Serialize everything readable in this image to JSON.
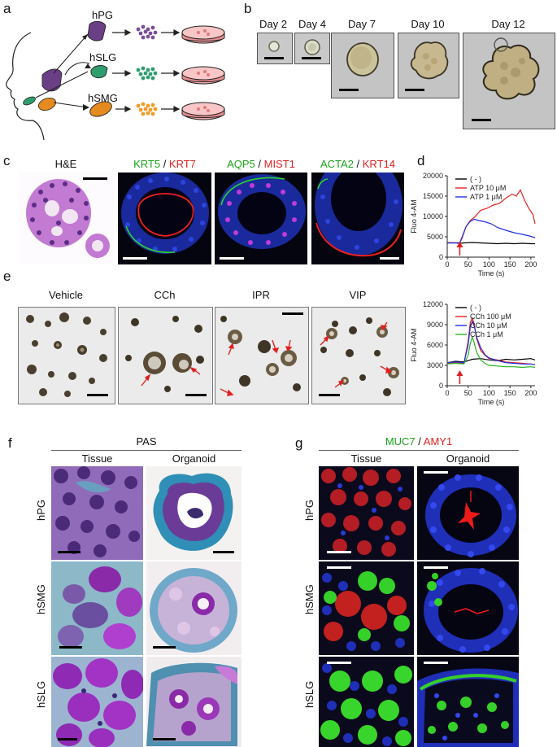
{
  "panels": {
    "a": {
      "letter": "a",
      "glands": [
        "hPG",
        "hSLG",
        "hSMG"
      ],
      "colors": {
        "hPG": "#6a3f86",
        "hSLG": "#2f9e6e",
        "hSMG": "#e58a1f"
      }
    },
    "b": {
      "letter": "b",
      "days": [
        "Day 2",
        "Day 4",
        "Day 7",
        "Day 10",
        "Day 12"
      ]
    },
    "c": {
      "letter": "c",
      "he": "H&E",
      "stains": [
        {
          "green": "KRT5",
          "sep": " / ",
          "red": "KRT7"
        },
        {
          "green": "AQP5",
          "sep": " / ",
          "red": "MIST1"
        },
        {
          "green": "ACTA2",
          "sep": " / ",
          "red": "KRT14"
        }
      ]
    },
    "d": {
      "letter": "d"
    },
    "e": {
      "letter": "e",
      "conditions": [
        "Vehicle",
        "CCh",
        "IPR",
        "VIP"
      ]
    },
    "f": {
      "letter": "f",
      "title": "PAS",
      "cols": [
        "Tissue",
        "Organoid"
      ],
      "rows": [
        "hPG",
        "hSMG",
        "hSLG"
      ]
    },
    "g": {
      "letter": "g",
      "title_green": "MUC7",
      "title_sep": " / ",
      "title_red": "AMY1",
      "cols": [
        "Tissue",
        "Organoid"
      ],
      "rows": [
        "hPG",
        "hSMG",
        "hSLG"
      ]
    }
  },
  "chart_data": [
    {
      "type": "line",
      "panel": "d",
      "xlabel": "Time (s)",
      "ylabel": "Fluo 4-AM",
      "xlim": [
        0,
        210
      ],
      "ylim": [
        0,
        20000
      ],
      "xticks": [
        0,
        50,
        100,
        150,
        200
      ],
      "yticks": [
        0,
        5000,
        10000,
        15000,
        20000
      ],
      "arrow_x": 30,
      "series": [
        {
          "name": "( - )",
          "color": "#000000",
          "x": [
            0,
            20,
            30,
            40,
            60,
            80,
            100,
            120,
            140,
            160,
            180,
            200,
            210
          ],
          "values": [
            3500,
            3500,
            3400,
            3500,
            3600,
            3500,
            3400,
            3300,
            3400,
            3300,
            3400,
            3300,
            3300
          ]
        },
        {
          "name": "ATP 10 μM",
          "color": "#e8211d",
          "x": [
            0,
            20,
            30,
            35,
            45,
            55,
            65,
            80,
            95,
            110,
            125,
            140,
            155,
            165,
            175,
            185,
            195,
            205,
            210
          ],
          "values": [
            3600,
            3500,
            3600,
            4500,
            7500,
            9000,
            9800,
            11500,
            12000,
            12800,
            13200,
            14500,
            15500,
            15000,
            16500,
            14000,
            12000,
            10500,
            8200
          ]
        },
        {
          "name": "ATP 1 μM",
          "color": "#1f2fe0",
          "x": [
            0,
            20,
            30,
            35,
            45,
            55,
            65,
            75,
            90,
            105,
            120,
            140,
            160,
            180,
            200,
            210
          ],
          "values": [
            3500,
            3500,
            3500,
            4800,
            7500,
            8800,
            9300,
            9000,
            8700,
            8200,
            7300,
            6600,
            6000,
            5600,
            5100,
            4800
          ]
        }
      ]
    },
    {
      "type": "line",
      "panel": "e",
      "xlabel": "Time (s)",
      "ylabel": "Fluo 4-AM",
      "xlim": [
        0,
        210
      ],
      "ylim": [
        0,
        12000
      ],
      "xticks": [
        0,
        50,
        100,
        150,
        200
      ],
      "yticks": [
        0,
        3000,
        6000,
        9000,
        12000
      ],
      "arrow_x": 30,
      "series": [
        {
          "name": "( - )",
          "color": "#000000",
          "x": [
            0,
            20,
            40,
            60,
            80,
            100,
            120,
            140,
            160,
            180,
            200,
            210
          ],
          "values": [
            3400,
            3600,
            3500,
            3900,
            4000,
            3800,
            3700,
            3900,
            3800,
            3900,
            4000,
            3800
          ]
        },
        {
          "name": "CCh 100 μM",
          "color": "#e8211d",
          "x": [
            0,
            20,
            40,
            50,
            55,
            60,
            65,
            70,
            80,
            90,
            100,
            120,
            140,
            160,
            180,
            200,
            210
          ],
          "values": [
            3300,
            3400,
            3300,
            6500,
            9300,
            10000,
            9000,
            7000,
            5200,
            4500,
            4000,
            3800,
            3500,
            3400,
            3300,
            3200,
            3100
          ]
        },
        {
          "name": "CCh 10 μM",
          "color": "#1f2fe0",
          "x": [
            0,
            20,
            40,
            50,
            55,
            60,
            65,
            70,
            80,
            90,
            100,
            120,
            140,
            160,
            180,
            200,
            210
          ],
          "values": [
            3400,
            3500,
            3400,
            6000,
            8600,
            9500,
            8700,
            7200,
            5600,
            4600,
            4100,
            3700,
            3400,
            3300,
            3200,
            3200,
            3100
          ]
        },
        {
          "name": "CCh 1 μM",
          "color": "#29b327",
          "x": [
            0,
            20,
            40,
            50,
            55,
            60,
            65,
            70,
            80,
            90,
            100,
            120,
            140,
            160,
            180,
            200,
            210
          ],
          "values": [
            3200,
            3300,
            3200,
            4500,
            6200,
            7200,
            6200,
            5000,
            3800,
            3300,
            3000,
            2900,
            2800,
            2800,
            2700,
            2800,
            2700
          ]
        }
      ]
    }
  ]
}
